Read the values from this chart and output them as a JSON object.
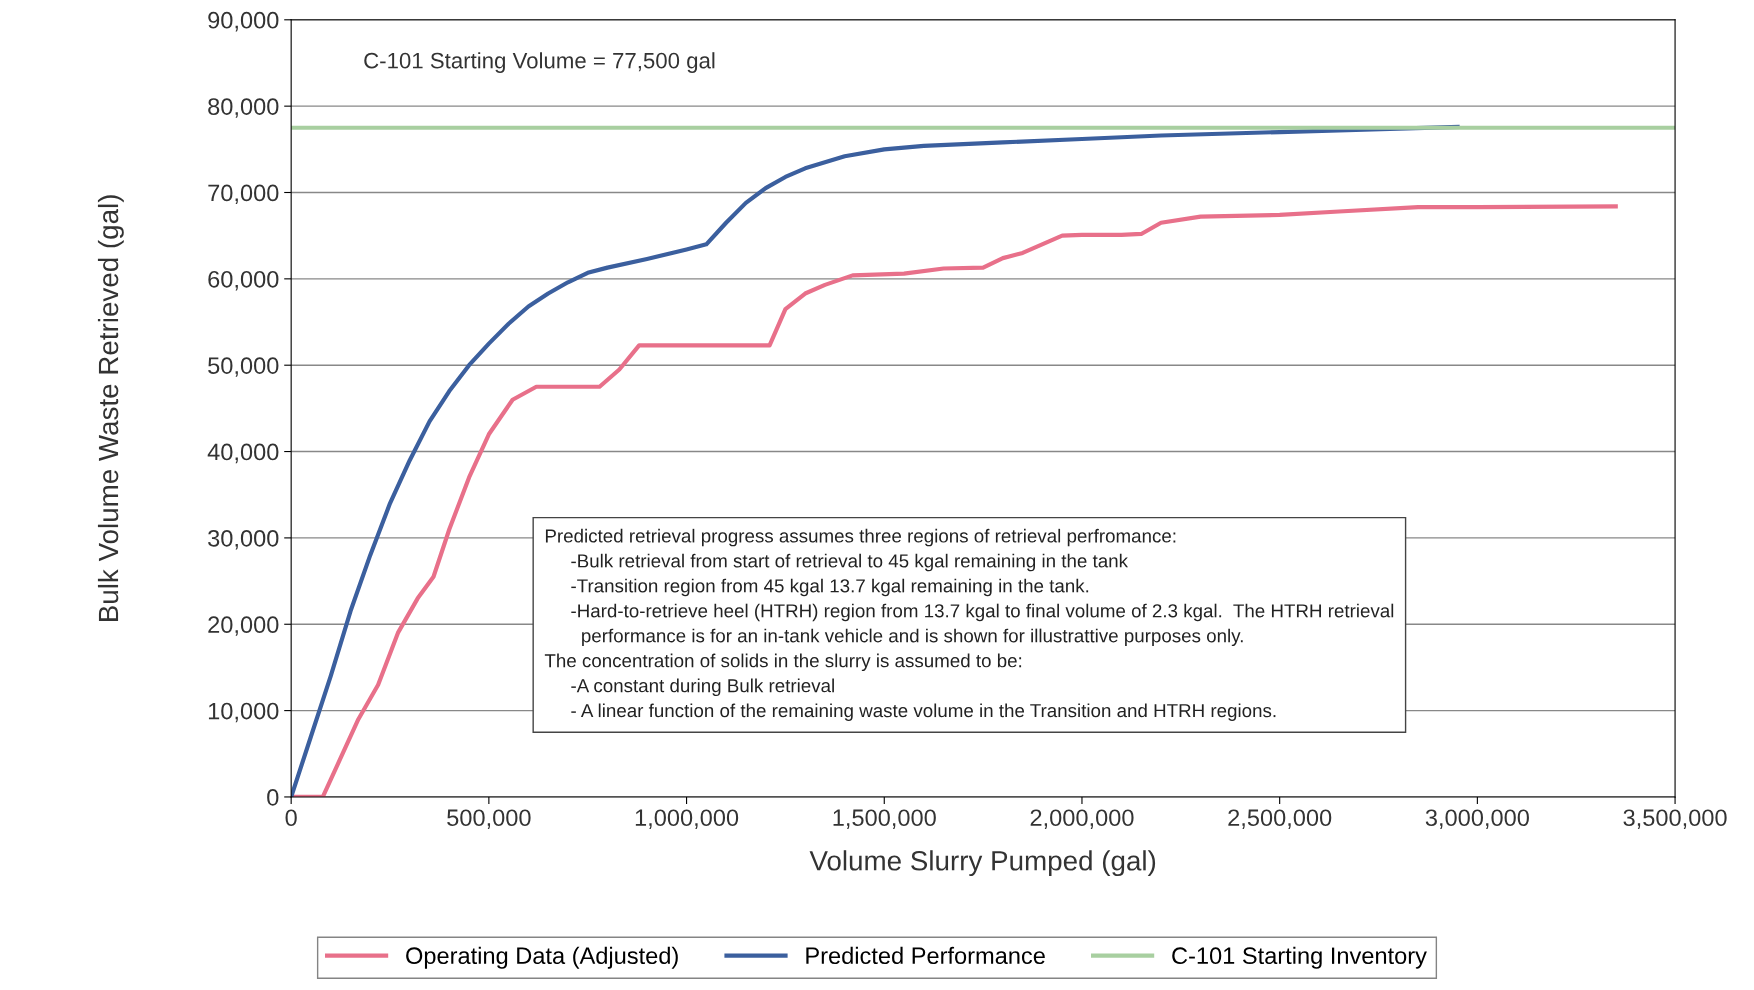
{
  "chart_data": {
    "type": "line",
    "xlabel": "Volume Slurry Pumped (gal)",
    "ylabel": "Bulk Volume Waste Retrieved (gal)",
    "xlim": [
      0,
      3500000
    ],
    "xticks": [
      {
        "value": 0,
        "label": "0"
      },
      {
        "value": 500000,
        "label": "500,000"
      },
      {
        "value": 1000000,
        "label": "1,000,000"
      },
      {
        "value": 1500000,
        "label": "1,500,000"
      },
      {
        "value": 2000000,
        "label": "2,000,000"
      },
      {
        "value": 2500000,
        "label": "2,500,000"
      },
      {
        "value": 3000000,
        "label": "3,000,000"
      },
      {
        "value": 3500000,
        "label": "3,500,000"
      }
    ],
    "ylim": [
      0,
      90000
    ],
    "yticks": [
      {
        "value": 0,
        "label": "0"
      },
      {
        "value": 10000,
        "label": "10,000"
      },
      {
        "value": 20000,
        "label": "20,000"
      },
      {
        "value": 30000,
        "label": "30,000"
      },
      {
        "value": 40000,
        "label": "40,000"
      },
      {
        "value": 50000,
        "label": "50,000"
      },
      {
        "value": 60000,
        "label": "60,000"
      },
      {
        "value": 70000,
        "label": "70,000"
      },
      {
        "value": 80000,
        "label": "80,000"
      },
      {
        "value": 90000,
        "label": "90,000"
      }
    ],
    "grid": "y",
    "legend": "bottom",
    "marker": "none",
    "line_style": "solid",
    "series": [
      {
        "name": "Operating Data (Adjusted)",
        "color": "#e8708a",
        "x": [
          0,
          80000,
          120000,
          170000,
          220000,
          270000,
          320000,
          360000,
          400000,
          450000,
          500000,
          560000,
          620000,
          780000,
          830000,
          880000,
          1000000,
          1210000,
          1250000,
          1300000,
          1350000,
          1420000,
          1550000,
          1650000,
          1750000,
          1800000,
          1850000,
          1950000,
          2000000,
          2100000,
          2150000,
          2200000,
          2300000,
          2500000,
          2650000,
          2850000,
          3000000,
          3350000
        ],
        "values": [
          0,
          0,
          4000,
          9000,
          13000,
          19000,
          23000,
          25500,
          31000,
          37000,
          42000,
          46000,
          47500,
          47500,
          49500,
          52300,
          52300,
          52300,
          56500,
          58300,
          59300,
          60400,
          60600,
          61200,
          61300,
          62400,
          63000,
          65000,
          65100,
          65100,
          65200,
          66500,
          67200,
          67400,
          67800,
          68300,
          68300,
          68400
        ]
      },
      {
        "name": "Predicted Performance",
        "color": "#3b5f9e",
        "x": [
          0,
          50000,
          100000,
          150000,
          200000,
          250000,
          300000,
          350000,
          400000,
          450000,
          500000,
          550000,
          600000,
          650000,
          700000,
          750000,
          800000,
          900000,
          1000000,
          1050000,
          1100000,
          1150000,
          1200000,
          1250000,
          1300000,
          1400000,
          1500000,
          1600000,
          1800000,
          2000000,
          2200000,
          2500000,
          2800000,
          2950000
        ],
        "values": [
          0,
          7000,
          14000,
          21500,
          28000,
          34000,
          39000,
          43500,
          47000,
          50000,
          52500,
          54800,
          56800,
          58300,
          59600,
          60700,
          61300,
          62300,
          63400,
          64000,
          66500,
          68800,
          70500,
          71800,
          72800,
          74200,
          75000,
          75400,
          75800,
          76200,
          76600,
          77000,
          77400,
          77600
        ]
      },
      {
        "name": "C-101 Starting Inventory",
        "color": "#a8cfa0",
        "x": [
          0,
          3500000
        ],
        "values": [
          77500,
          77500
        ]
      }
    ],
    "annotations": [
      "C-101 Starting Volume = 77,500 gal",
      "Predicted retrieval progress assumes three regions of retrieval perfromance:\n     -Bulk retrieval from start of retrieval to 45 kgal remaining in the tank\n     -Transition region from 45 kgal 13.7 kgal remaining in the tank.\n     -Hard-to-retrieve heel (HTRH) region from 13.7 kgal to final volume of 2.3 kgal.  The HTRH retrieval\n       performance is for an in-tank vehicle and is shown for illustrattive purposes only.\nThe concentration of solids in the slurry is assumed to be:\n     -A constant during Bulk retrieval\n     - A linear function of the remaining waste volume in the Transition and HTRH regions."
    ]
  }
}
